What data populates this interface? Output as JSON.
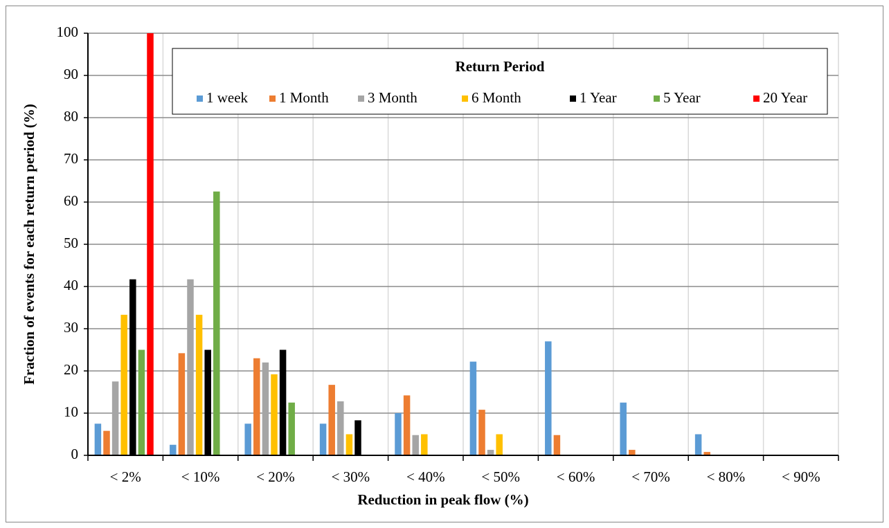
{
  "chart_data": {
    "type": "bar",
    "y_label": "Fraction of events for each return period (%)",
    "x_label": "Reduction in peak flow (%)",
    "legend_title": "Return Period",
    "legend_position": "top",
    "grid": true,
    "categories": [
      "< 2%",
      "< 10%",
      "< 20%",
      "< 30%",
      "< 40%",
      "< 50%",
      "< 60%",
      "< 70%",
      "< 80%",
      "< 90%"
    ],
    "series": [
      {
        "name": "1 week",
        "color": "#5b9bd5",
        "values": [
          7.5,
          2.5,
          7.5,
          7.5,
          10,
          22.2,
          27,
          12.5,
          5,
          0
        ]
      },
      {
        "name": "1 Month",
        "color": "#ed7d31",
        "values": [
          5.8,
          24.2,
          23,
          16.7,
          14.2,
          10.8,
          4.8,
          1.3,
          0.8,
          0
        ]
      },
      {
        "name": "3 Month",
        "color": "#a5a5a5",
        "values": [
          17.5,
          41.7,
          22,
          12.8,
          4.8,
          1.3,
          0,
          0,
          0,
          0
        ]
      },
      {
        "name": "6 Month",
        "color": "#ffc000",
        "values": [
          33.3,
          33.3,
          19.2,
          5,
          5,
          5,
          0,
          0,
          0,
          0
        ]
      },
      {
        "name": "1 Year",
        "color": "#000000",
        "values": [
          41.7,
          25,
          25,
          8.3,
          0,
          0,
          0,
          0,
          0,
          0
        ]
      },
      {
        "name": "5 Year",
        "color": "#70ad47",
        "values": [
          25,
          62.5,
          12.5,
          0,
          0,
          0,
          0,
          0,
          0,
          0
        ]
      },
      {
        "name": "20 Year",
        "color": "#ff0000",
        "values": [
          100,
          0,
          0,
          0,
          0,
          0,
          0,
          0,
          0,
          0
        ]
      }
    ],
    "ylim": [
      0,
      100
    ],
    "yticks": [
      0,
      10,
      20,
      30,
      40,
      50,
      60,
      70,
      80,
      90,
      100
    ]
  }
}
